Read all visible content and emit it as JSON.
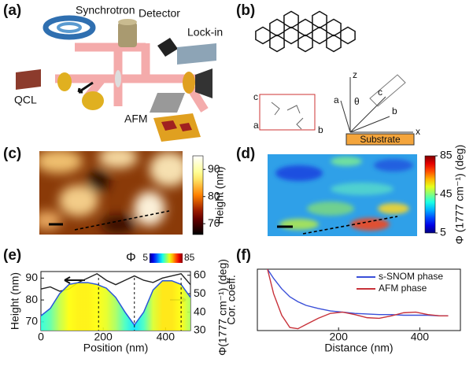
{
  "panel_labels": [
    "(a)",
    "(b)",
    "(c)",
    "(d)",
    "(e)",
    "(f)"
  ],
  "schematic_labels": {
    "synchrotron": "Synchrotron",
    "detector": "Detector",
    "lock_in": "Lock-in",
    "qcl": "QCL",
    "afm": "AFM"
  },
  "crystal_labels": {
    "unit_cell": [
      "c",
      "a",
      "b"
    ],
    "frame": [
      "z",
      "θ",
      "a",
      "c",
      "b",
      "x"
    ],
    "substrate": "Substrate"
  },
  "maps": [
    {
      "colorbar_label": "Height (nm)",
      "clim": [
        66,
        95
      ],
      "cticks": [
        70,
        80,
        90
      ],
      "colormap": "afmhot"
    },
    {
      "colorbar_label": "Φ (1777 cm⁻¹) (deg)",
      "clim": [
        5,
        85
      ],
      "cticks": [
        5,
        45,
        85
      ],
      "colormap": "jet"
    }
  ],
  "chart_data": [
    {
      "type": "line",
      "x_label": "Position (nm)",
      "y_label": "Height (nm)",
      "y2_label": "Φ(1777 cm⁻¹) (deg)",
      "xlim": [
        0,
        480
      ],
      "xticks": [
        0,
        200,
        400
      ],
      "ylim": [
        66,
        93
      ],
      "yticks": [
        70,
        80,
        90
      ],
      "y2lim": [
        30,
        62
      ],
      "y2ticks": [
        30,
        40,
        50,
        60
      ],
      "x": [
        0,
        30,
        60,
        90,
        120,
        150,
        180,
        210,
        240,
        270,
        300,
        330,
        360,
        390,
        420,
        450,
        480
      ],
      "series": [
        {
          "color": "#222222",
          "values": [
            85,
            86,
            84,
            85,
            88,
            90,
            92,
            89,
            87,
            89,
            91,
            89,
            88,
            90,
            91,
            92,
            87
          ]
        },
        {
          "color": "#2a55d8",
          "axis": "y2",
          "fill": "jet",
          "values": [
            38,
            42,
            50,
            55,
            56,
            56,
            55,
            53,
            48,
            40,
            33,
            40,
            52,
            57,
            57,
            55,
            48
          ]
        }
      ],
      "vlines": [
        185,
        300,
        450
      ],
      "inset_colorbar": {
        "label": "Φ",
        "clim": [
          5,
          85
        ],
        "ticks": [
          5,
          85
        ]
      }
    },
    {
      "type": "line",
      "x_label": "Distance (nm)",
      "y_label": "Cor. coeff.",
      "xlim": [
        0,
        500
      ],
      "xticks": [
        200,
        400
      ],
      "ylim": [
        0,
        1
      ],
      "legend": "upper right",
      "x": [
        25,
        40,
        60,
        80,
        100,
        120,
        150,
        180,
        210,
        240,
        270,
        300,
        330,
        360,
        390,
        420,
        450,
        470
      ],
      "series": [
        {
          "name": "s-SNOM phase",
          "color": "#3a4fd8",
          "values": [
            1.0,
            0.85,
            0.68,
            0.55,
            0.47,
            0.41,
            0.36,
            0.32,
            0.3,
            0.28,
            0.27,
            0.26,
            0.26,
            0.25,
            0.25,
            0.25,
            0.24,
            0.24
          ]
        },
        {
          "name": "AFM  phase",
          "color": "#c8323a",
          "values": [
            1.0,
            0.6,
            0.25,
            0.05,
            0.03,
            0.1,
            0.2,
            0.28,
            0.3,
            0.26,
            0.21,
            0.2,
            0.24,
            0.29,
            0.3,
            0.26,
            0.24,
            0.24
          ]
        }
      ]
    }
  ]
}
